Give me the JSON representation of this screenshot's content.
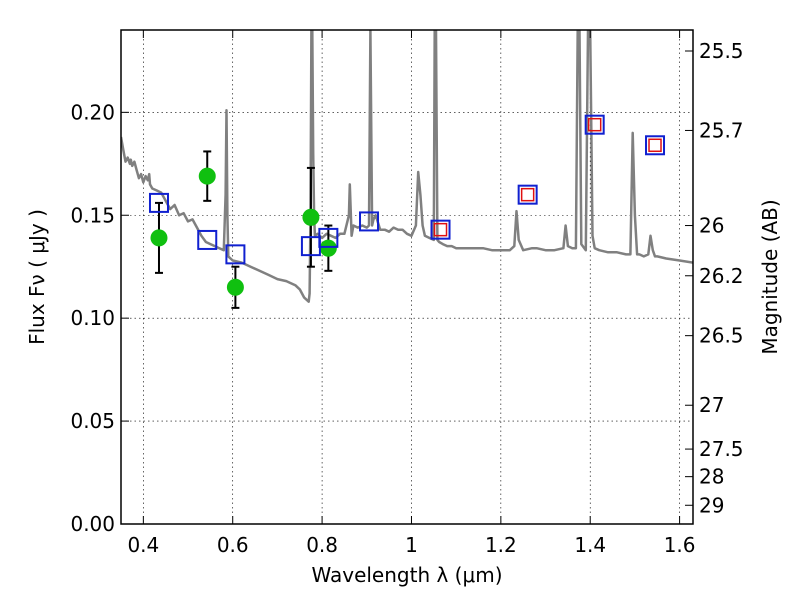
{
  "chart_data": {
    "type": "scatter",
    "xlabel": "Wavelength  λ (μm)",
    "ylabel": "Flux  Fν  ( μJy )",
    "y2label": "Magnitude (AB)",
    "xlim": [
      0.35,
      1.63
    ],
    "ylim": [
      0.0,
      0.24
    ],
    "x_ticks": [
      0.4,
      0.6,
      0.8,
      1.0,
      1.2,
      1.4,
      1.6
    ],
    "x_tick_labels": [
      "0.4",
      "0.6",
      "0.8",
      "1",
      "1.2",
      "1.4",
      "1.6"
    ],
    "y_ticks": [
      0.0,
      0.05,
      0.1,
      0.15,
      0.2
    ],
    "y_tick_labels": [
      "0.00",
      "0.05",
      "0.10",
      "0.15",
      "0.20"
    ],
    "y2_ticks": [
      {
        "label": "25.5",
        "flux": 0.2298
      },
      {
        "label": "25.7",
        "flux": 0.1912
      },
      {
        "label": "26",
        "flux": 0.145
      },
      {
        "label": "26.2",
        "flux": 0.1206
      },
      {
        "label": "26.5",
        "flux": 0.0915
      },
      {
        "label": "27",
        "flux": 0.0577
      },
      {
        "label": "27.5",
        "flux": 0.0364
      },
      {
        "label": "28",
        "flux": 0.023
      },
      {
        "label": "29",
        "flux": 0.0091
      }
    ],
    "grid": true,
    "colors": {
      "observed": "#10c010",
      "model": "#1020d0",
      "ir_inner": "#e01010",
      "spectrum": "#808080",
      "errorbar": "#000000"
    },
    "series": [
      {
        "kind": "observed",
        "x": [
          0.435,
          0.543,
          0.606,
          0.775,
          0.814
        ],
        "y": [
          0.139,
          0.169,
          0.115,
          0.149,
          0.134
        ],
        "yerr": [
          0.017,
          0.012,
          0.01,
          0.024,
          0.011
        ]
      },
      {
        "kind": "model",
        "x": [
          0.435,
          0.543,
          0.606,
          0.775,
          0.814,
          0.905,
          1.065,
          1.26,
          1.41,
          1.545
        ],
        "y": [
          0.156,
          0.138,
          0.131,
          0.135,
          0.139,
          0.147,
          0.143,
          0.16,
          0.194,
          0.184
        ]
      },
      {
        "kind": "ir_inner",
        "x": [
          1.065,
          1.26,
          1.41,
          1.545
        ],
        "y": [
          0.143,
          0.16,
          0.194,
          0.184
        ]
      },
      {
        "kind": "spectrum",
        "x": [
          0.35,
          0.355,
          0.36,
          0.365,
          0.37,
          0.372,
          0.375,
          0.38,
          0.385,
          0.39,
          0.395,
          0.4,
          0.405,
          0.41,
          0.413,
          0.415,
          0.42,
          0.43,
          0.44,
          0.45,
          0.46,
          0.47,
          0.48,
          0.49,
          0.5,
          0.51,
          0.52,
          0.53,
          0.54,
          0.55,
          0.56,
          0.57,
          0.58,
          0.584,
          0.586,
          0.588,
          0.59,
          0.6,
          0.62,
          0.64,
          0.66,
          0.68,
          0.7,
          0.72,
          0.74,
          0.75,
          0.76,
          0.77,
          0.772,
          0.774,
          0.776,
          0.778,
          0.78,
          0.782,
          0.784,
          0.79,
          0.8,
          0.81,
          0.82,
          0.83,
          0.84,
          0.85,
          0.86,
          0.862,
          0.866,
          0.87,
          0.88,
          0.89,
          0.9,
          0.905,
          0.908,
          0.912,
          0.915,
          0.92,
          0.93,
          0.94,
          0.95,
          0.96,
          0.97,
          0.98,
          0.99,
          1.0,
          1.01,
          1.015,
          1.02,
          1.025,
          1.03,
          1.04,
          1.05,
          1.052,
          1.055,
          1.058,
          1.062,
          1.07,
          1.08,
          1.09,
          1.1,
          1.12,
          1.14,
          1.16,
          1.18,
          1.2,
          1.22,
          1.23,
          1.235,
          1.24,
          1.25,
          1.27,
          1.28,
          1.3,
          1.32,
          1.34,
          1.345,
          1.35,
          1.36,
          1.368,
          1.372,
          1.376,
          1.38,
          1.39,
          1.395,
          1.4,
          1.405,
          1.41,
          1.42,
          1.44,
          1.46,
          1.48,
          1.49,
          1.495,
          1.5,
          1.505,
          1.51,
          1.52,
          1.53,
          1.535,
          1.54,
          1.545,
          1.55,
          1.57,
          1.6,
          1.63
        ],
        "y": [
          0.188,
          0.182,
          0.176,
          0.178,
          0.175,
          0.177,
          0.174,
          0.176,
          0.172,
          0.168,
          0.17,
          0.166,
          0.169,
          0.167,
          0.17,
          0.165,
          0.163,
          0.162,
          0.161,
          0.157,
          0.153,
          0.155,
          0.15,
          0.151,
          0.147,
          0.148,
          0.144,
          0.14,
          0.137,
          0.136,
          0.135,
          0.134,
          0.133,
          0.16,
          0.201,
          0.15,
          0.13,
          0.128,
          0.127,
          0.125,
          0.123,
          0.121,
          0.119,
          0.118,
          0.116,
          0.114,
          0.11,
          0.108,
          0.112,
          0.15,
          0.24,
          0.24,
          0.18,
          0.15,
          0.14,
          0.141,
          0.139,
          0.141,
          0.14,
          0.139,
          0.141,
          0.141,
          0.15,
          0.165,
          0.14,
          0.145,
          0.144,
          0.145,
          0.144,
          0.145,
          0.24,
          0.145,
          0.148,
          0.15,
          0.143,
          0.143,
          0.142,
          0.144,
          0.143,
          0.143,
          0.141,
          0.14,
          0.145,
          0.171,
          0.16,
          0.145,
          0.14,
          0.139,
          0.138,
          0.24,
          0.24,
          0.138,
          0.137,
          0.136,
          0.135,
          0.135,
          0.134,
          0.134,
          0.134,
          0.134,
          0.133,
          0.133,
          0.133,
          0.135,
          0.152,
          0.138,
          0.133,
          0.134,
          0.134,
          0.133,
          0.133,
          0.134,
          0.145,
          0.135,
          0.134,
          0.134,
          0.24,
          0.24,
          0.136,
          0.133,
          0.24,
          0.24,
          0.14,
          0.134,
          0.133,
          0.132,
          0.132,
          0.131,
          0.131,
          0.19,
          0.15,
          0.131,
          0.131,
          0.13,
          0.131,
          0.14,
          0.133,
          0.13,
          0.13,
          0.129,
          0.128,
          0.127
        ]
      }
    ]
  }
}
